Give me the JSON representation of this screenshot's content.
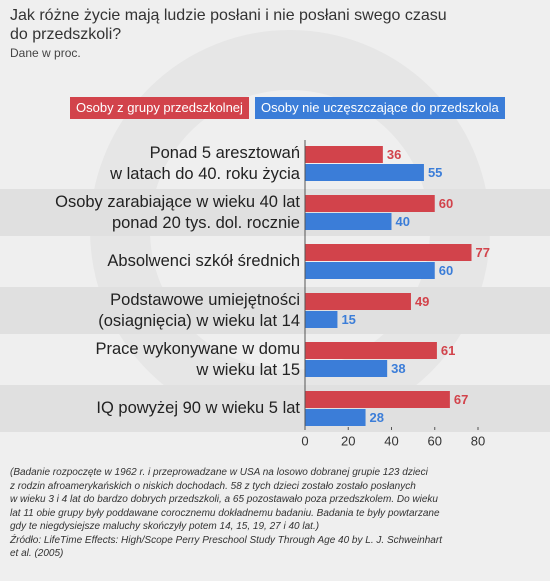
{
  "chart_data": {
    "type": "bar",
    "orientation": "horizontal",
    "title": "Jak różne życie mają ludzie posłani i nie posłani swego czasu\ndo przedszkoli?",
    "subtitle": "Dane w proc.",
    "categories": [
      "Ponad 5 aresztowań\nw latach do 40. roku życia",
      "Osoby zarabiające w wieku 40 lat\nponad 20 tys. dol. rocznie",
      "Absolwenci szkół średnich",
      "Podstawowe umiejętności\n(osiagnięcia) w wieku lat 14",
      "Prace wykonywane w domu\nw wieku lat 15",
      "IQ powyżej 90 w wieku 5 lat"
    ],
    "series": [
      {
        "name": "Osoby z grupy przedszkolnej",
        "color": "#d2434b",
        "values": [
          36,
          60,
          77,
          49,
          61,
          67
        ]
      },
      {
        "name": "Osoby nie uczęszczające do przedszkola",
        "color": "#3b7dd8",
        "values": [
          55,
          40,
          60,
          15,
          38,
          28
        ]
      }
    ],
    "xlim": [
      0,
      80
    ],
    "xticks": [
      0,
      20,
      40,
      60,
      80
    ],
    "note": "(Badanie rozpoczęte w 1962 r. i przeprowadzane w USA na losowo dobranej grupie 123 dzieci\nz rodzin afroamerykańskich o niskich dochodach. 58 z tych dzieci zostało zostało posłanych\nw wieku 3 i 4 lat do bardzo dobrych przedszkoli, a 65 pozostawało poza przedszkolem. Do wieku\nlat 11 obie grupy były poddawane corocznemu dokładnemu badaniu. Badania te były powtarzane\ngdy te niegdysiejsze maluchy skończyły potem 14, 15, 19, 27 i 40 lat.)\nŹródło: LifeTime Effects: High/Scope Perry Preschool Study Through Age 40 by L. J. Schweinhart\net al. (2005)"
  }
}
